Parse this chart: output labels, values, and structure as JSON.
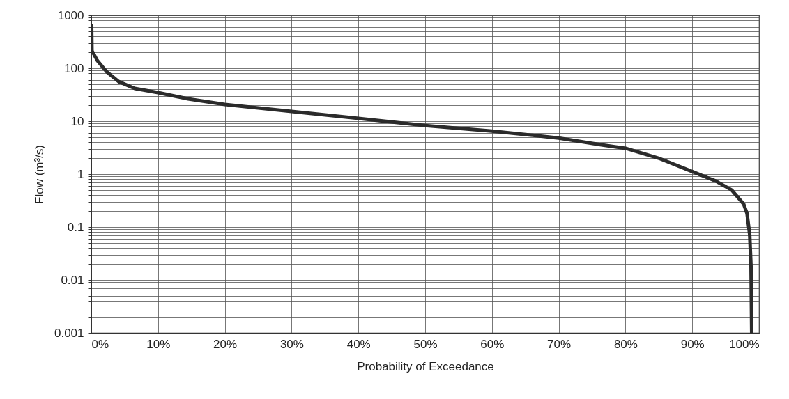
{
  "chart_data": {
    "type": "line",
    "xlabel": "Probability of Exceedance",
    "ylabel": "Flow (m³/s)",
    "log": "y",
    "grid": true,
    "xlim": [
      0,
      100
    ],
    "ylim": [
      0.001,
      1000
    ],
    "xticks": [
      {
        "value": 0,
        "label": "0%"
      },
      {
        "value": 10,
        "label": "10%"
      },
      {
        "value": 20,
        "label": "20%"
      },
      {
        "value": 30,
        "label": "30%"
      },
      {
        "value": 40,
        "label": "40%"
      },
      {
        "value": 50,
        "label": "50%"
      },
      {
        "value": 60,
        "label": "60%"
      },
      {
        "value": 70,
        "label": "70%"
      },
      {
        "value": 80,
        "label": "80%"
      },
      {
        "value": 90,
        "label": "90%"
      },
      {
        "value": 100,
        "label": "100%"
      }
    ],
    "yticks": [
      0.001,
      {
        "value": 0.002,
        "label": null
      },
      {
        "value": 0.003,
        "label": null
      },
      {
        "value": 0.004,
        "label": null
      },
      {
        "value": 0.005,
        "label": null
      },
      {
        "value": 0.006,
        "label": null
      },
      {
        "value": 0.007,
        "label": null
      },
      {
        "value": 0.008,
        "label": null
      },
      {
        "value": 0.009,
        "label": null
      },
      0.01,
      {
        "value": 0.02,
        "label": null
      },
      {
        "value": 0.03,
        "label": null
      },
      {
        "value": 0.04,
        "label": null
      },
      {
        "value": 0.05,
        "label": null
      },
      {
        "value": 0.06,
        "label": null
      },
      {
        "value": 0.07,
        "label": null
      },
      {
        "value": 0.08,
        "label": null
      },
      {
        "value": 0.09,
        "label": null
      },
      0.1,
      {
        "value": 0.2,
        "label": null
      },
      {
        "value": 0.3,
        "label": null
      },
      {
        "value": 0.4,
        "label": null
      },
      {
        "value": 0.5,
        "label": null
      },
      {
        "value": 0.6,
        "label": null
      },
      {
        "value": 0.7,
        "label": null
      },
      {
        "value": 0.8,
        "label": null
      },
      {
        "value": 0.9,
        "label": null
      },
      1,
      {
        "value": 2,
        "label": null
      },
      {
        "value": 3,
        "label": null
      },
      {
        "value": 4,
        "label": null
      },
      {
        "value": 5,
        "label": null
      },
      {
        "value": 6,
        "label": null
      },
      {
        "value": 7,
        "label": null
      },
      {
        "value": 8,
        "label": null
      },
      {
        "value": 9,
        "label": null
      },
      10,
      {
        "value": 20,
        "label": null
      },
      {
        "value": 30,
        "label": null
      },
      {
        "value": 40,
        "label": null
      },
      {
        "value": 50,
        "label": null
      },
      {
        "value": 60,
        "label": null
      },
      {
        "value": 70,
        "label": null
      },
      {
        "value": 80,
        "label": null
      },
      {
        "value": 90,
        "label": null
      },
      100,
      {
        "value": 200,
        "label": null
      },
      {
        "value": 300,
        "label": null
      },
      {
        "value": 400,
        "label": null
      },
      {
        "value": 500,
        "label": null
      },
      {
        "value": 600,
        "label": null
      },
      {
        "value": 700,
        "label": null
      },
      {
        "value": 800,
        "label": null
      },
      {
        "value": 900,
        "label": null
      },
      1000
    ],
    "series": [
      {
        "color": "#2b2b2b",
        "x": [
          0.05,
          0.1,
          0.9,
          2.3,
          4.1,
          6.5,
          10,
          14.5,
          20,
          30,
          40,
          50,
          60,
          70,
          76.4,
          80,
          85.2,
          90.2,
          93.5,
          95.9,
          97.7,
          98.2,
          98.6,
          98.8,
          98.9
        ],
        "values": [
          650,
          214,
          140,
          86,
          56,
          41.5,
          34.6,
          26.4,
          20.7,
          15.3,
          11.3,
          8.3,
          6.5,
          4.8,
          3.57,
          3.07,
          1.95,
          1.09,
          0.74,
          0.5,
          0.27,
          0.18,
          0.072,
          0.018,
          0.001
        ]
      }
    ]
  }
}
